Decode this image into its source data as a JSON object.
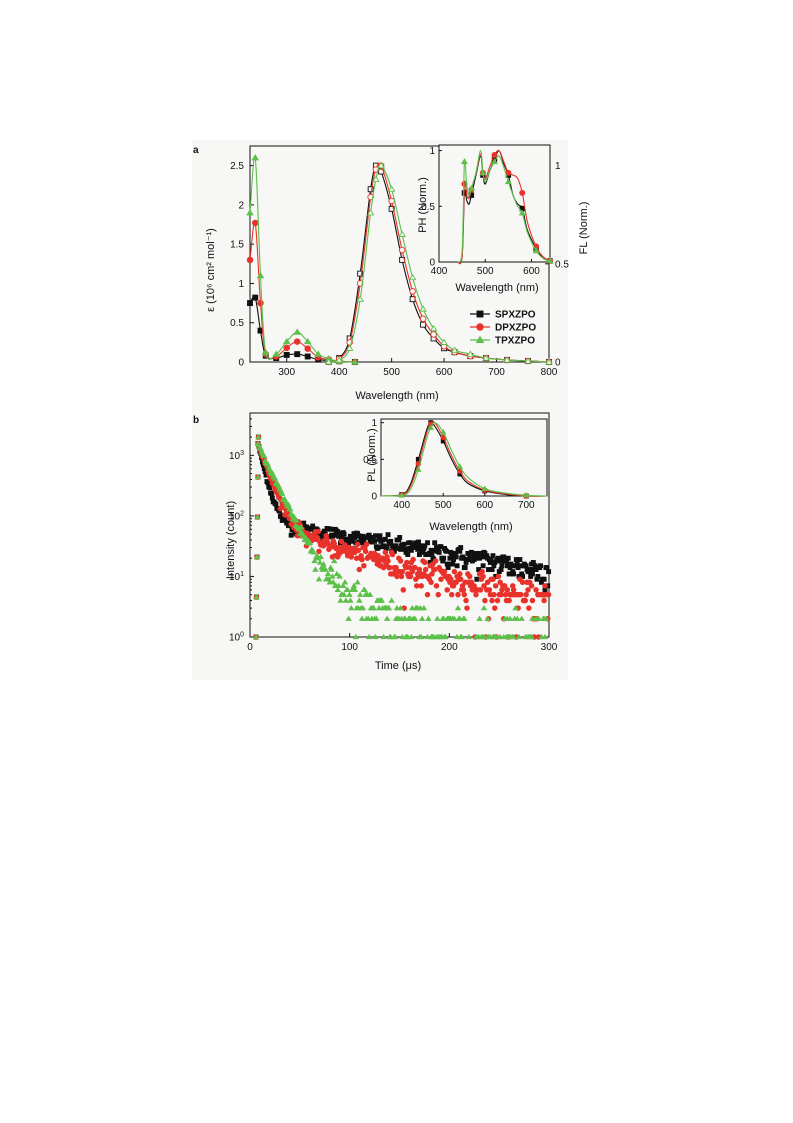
{
  "colors": {
    "SPXZPO": "#111111",
    "DPXZPO": "#e8322b",
    "TPXZPO": "#5cc04a",
    "background": "#f7f7f5"
  },
  "chart_data": [
    {
      "panel": "a",
      "type": "line",
      "xlabel": "Wavelength (nm)",
      "ylabel": "ε (10⁶ cm² mol⁻¹)",
      "y2label": "FL (Norm.)",
      "xlim": [
        230,
        800
      ],
      "ylim": [
        0,
        2.75
      ],
      "y2lim": [
        0,
        1.1
      ],
      "xticks": [
        "300",
        "400",
        "500",
        "600",
        "700",
        "800"
      ],
      "yticks": [
        "0",
        "0.5",
        "1",
        "1.5",
        "2",
        "2.5"
      ],
      "y2ticks": [
        "0",
        "0.5",
        "1"
      ],
      "legend_position": "lower-right",
      "series": [
        {
          "name": "SPXZPO",
          "marker": "square",
          "absorption": {
            "x": [
              230,
              240,
              250,
              260,
              280,
              300,
              320,
              340,
              360,
              380,
              400,
              430
            ],
            "y": [
              0.75,
              0.82,
              0.4,
              0.08,
              0.05,
              0.09,
              0.1,
              0.07,
              0.03,
              0.02,
              0.01,
              0.0
            ]
          },
          "fluorescence": {
            "x": [
              380,
              400,
              420,
              440,
              460,
              470,
              480,
              500,
              520,
              540,
              560,
              580,
              600,
              620,
              650,
              680,
              720,
              760,
              800
            ],
            "y": [
              0.0,
              0.02,
              0.12,
              0.45,
              0.88,
              1.0,
              0.97,
              0.78,
              0.52,
              0.32,
              0.19,
              0.12,
              0.07,
              0.05,
              0.03,
              0.02,
              0.01,
              0.005,
              0.0
            ]
          }
        },
        {
          "name": "DPXZPO",
          "marker": "circle",
          "absorption": {
            "x": [
              230,
              240,
              250,
              260,
              280,
              300,
              320,
              340,
              360,
              380,
              400,
              430
            ],
            "y": [
              1.3,
              1.77,
              0.75,
              0.1,
              0.07,
              0.18,
              0.26,
              0.17,
              0.06,
              0.03,
              0.01,
              0.0
            ]
          },
          "fluorescence": {
            "x": [
              380,
              400,
              420,
              440,
              460,
              470,
              480,
              500,
              520,
              540,
              560,
              580,
              600,
              620,
              650,
              680,
              720,
              760,
              800
            ],
            "y": [
              0.0,
              0.015,
              0.1,
              0.4,
              0.84,
              0.98,
              1.0,
              0.82,
              0.57,
              0.36,
              0.22,
              0.14,
              0.08,
              0.05,
              0.03,
              0.02,
              0.01,
              0.005,
              0.0
            ]
          }
        },
        {
          "name": "TPXZPO",
          "marker": "triangle",
          "absorption": {
            "x": [
              230,
              240,
              250,
              260,
              280,
              300,
              320,
              340,
              360,
              380,
              400,
              430
            ],
            "y": [
              1.9,
              2.6,
              1.1,
              0.12,
              0.1,
              0.26,
              0.38,
              0.26,
              0.1,
              0.04,
              0.01,
              0.0
            ]
          },
          "fluorescence": {
            "x": [
              380,
              400,
              420,
              440,
              460,
              470,
              480,
              500,
              520,
              540,
              560,
              580,
              600,
              620,
              650,
              680,
              720,
              760,
              800
            ],
            "y": [
              0.0,
              0.01,
              0.07,
              0.32,
              0.76,
              0.93,
              1.0,
              0.88,
              0.65,
              0.43,
              0.27,
              0.17,
              0.1,
              0.06,
              0.04,
              0.02,
              0.01,
              0.005,
              0.0
            ]
          }
        }
      ],
      "inset": {
        "type": "line",
        "xlabel": "Wavelength (nm)",
        "ylabel": "PH (Norm.)",
        "xlim": [
          400,
          640
        ],
        "ylim": [
          0,
          1.05
        ],
        "xticks": [
          "400",
          "500",
          "600"
        ],
        "yticks": [
          "0",
          "0.5",
          "1"
        ],
        "series": [
          {
            "name": "SPXZPO",
            "x": [
              440,
              450,
              455,
              460,
              465,
              470,
              480,
              490,
              495,
              500,
              510,
              520,
              530,
              540,
              550,
              560,
              570,
              580,
              590,
              600,
              610,
              620,
              630,
              640
            ],
            "y": [
              0.0,
              0.05,
              0.62,
              0.55,
              0.52,
              0.6,
              0.78,
              0.95,
              0.78,
              0.7,
              0.82,
              0.92,
              1.0,
              0.88,
              0.78,
              0.6,
              0.52,
              0.48,
              0.3,
              0.2,
              0.12,
              0.06,
              0.03,
              0.01
            ]
          },
          {
            "name": "DPXZPO",
            "x": [
              440,
              450,
              455,
              460,
              465,
              470,
              480,
              490,
              495,
              500,
              510,
              520,
              530,
              540,
              550,
              560,
              570,
              580,
              590,
              600,
              610,
              620,
              630,
              640
            ],
            "y": [
              0.0,
              0.05,
              0.7,
              0.6,
              0.57,
              0.65,
              0.8,
              0.97,
              0.8,
              0.74,
              0.86,
              0.96,
              1.0,
              0.9,
              0.8,
              0.78,
              0.75,
              0.62,
              0.38,
              0.24,
              0.14,
              0.07,
              0.03,
              0.01
            ]
          },
          {
            "name": "TPXZPO",
            "x": [
              440,
              450,
              455,
              460,
              465,
              470,
              480,
              490,
              495,
              500,
              510,
              520,
              530,
              540,
              550,
              560,
              570,
              580,
              590,
              600,
              610,
              620,
              630,
              640
            ],
            "y": [
              0.0,
              0.1,
              0.9,
              0.68,
              0.6,
              0.66,
              0.8,
              1.0,
              0.8,
              0.72,
              0.82,
              0.9,
              0.95,
              0.85,
              0.72,
              0.6,
              0.5,
              0.44,
              0.28,
              0.18,
              0.1,
              0.05,
              0.02,
              0.01
            ]
          }
        ]
      }
    },
    {
      "panel": "b",
      "type": "scatter",
      "xlabel": "Time (μs)",
      "ylabel": "Intensity (count)",
      "xlim": [
        0,
        300
      ],
      "ylim": [
        1,
        5000
      ],
      "yscale": "log",
      "xticks": [
        "0",
        "100",
        "200",
        "300"
      ],
      "yticks": [
        {
          "base": "10",
          "exp": "0"
        },
        {
          "base": "10",
          "exp": "1"
        },
        {
          "base": "10",
          "exp": "2"
        },
        {
          "base": "10",
          "exp": "3"
        }
      ],
      "legend_position": "top-right",
      "series": [
        {
          "name": "SPXZPO",
          "marker": "square",
          "peak": 2000,
          "decay": [
            {
              "a": 1500,
              "tau": 6
            },
            {
              "a": 80,
              "tau": 150
            }
          ]
        },
        {
          "name": "DPXZPO",
          "marker": "circle",
          "peak": 2000,
          "decay": [
            {
              "a": 1500,
              "tau": 9
            },
            {
              "a": 70,
              "tau": 90
            }
          ]
        },
        {
          "name": "TPXZPO",
          "marker": "triangle",
          "peak": 2000,
          "decay": [
            {
              "a": 1500,
              "tau": 12
            },
            {
              "a": 50,
              "tau": 35
            }
          ]
        }
      ],
      "inset": {
        "type": "line",
        "xlabel": "Wavelength (nm)",
        "ylabel": "PL (Norm.)",
        "xlim": [
          350,
          750
        ],
        "ylim": [
          0,
          1.05
        ],
        "xticks": [
          "400",
          "500",
          "600",
          "700"
        ],
        "yticks": [
          "0",
          "0.5",
          "1"
        ],
        "series": [
          {
            "name": "SPXZPO",
            "x": [
              350,
              400,
              420,
              440,
              460,
              470,
              480,
              500,
              520,
              540,
              560,
              600,
              650,
              700,
              750
            ],
            "y": [
              0.0,
              0.02,
              0.15,
              0.5,
              0.9,
              1.0,
              0.95,
              0.75,
              0.5,
              0.3,
              0.17,
              0.07,
              0.02,
              0.0,
              0.0
            ]
          },
          {
            "name": "DPXZPO",
            "x": [
              350,
              400,
              420,
              440,
              460,
              470,
              480,
              500,
              520,
              540,
              560,
              600,
              650,
              700,
              750
            ],
            "y": [
              0.0,
              0.015,
              0.12,
              0.44,
              0.85,
              0.98,
              1.0,
              0.8,
              0.55,
              0.34,
              0.2,
              0.08,
              0.03,
              0.0,
              0.0
            ]
          },
          {
            "name": "TPXZPO",
            "x": [
              350,
              400,
              420,
              440,
              460,
              470,
              480,
              500,
              520,
              540,
              560,
              600,
              650,
              700,
              750
            ],
            "y": [
              0.0,
              0.01,
              0.08,
              0.36,
              0.78,
              0.93,
              1.0,
              0.87,
              0.62,
              0.4,
              0.25,
              0.1,
              0.04,
              0.01,
              0.0
            ]
          }
        ]
      }
    }
  ]
}
